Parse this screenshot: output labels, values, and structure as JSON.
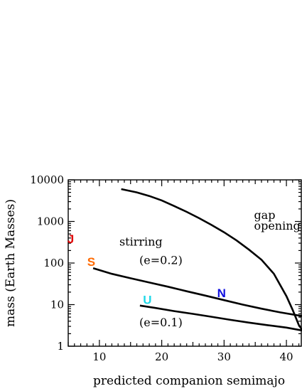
{
  "chart_data": {
    "type": "line",
    "xlabel": "predicted companion semimajo",
    "ylabel": "mass (Earth Masses)",
    "x_ticks": [
      10,
      20,
      30,
      40
    ],
    "y_ticks": [
      {
        "value": 1,
        "label": "1"
      },
      {
        "value": 10,
        "label": "10"
      },
      {
        "value": 100,
        "label": "100"
      },
      {
        "value": 1000,
        "label": "1000"
      },
      {
        "value": 10000,
        "label": "10000"
      }
    ],
    "xlim": [
      5,
      42.5
    ],
    "ylim": [
      1,
      10000
    ],
    "yscale": "log",
    "grid": false,
    "series": [
      {
        "name": "gap opening",
        "x": [
          13.5,
          16,
          18,
          20,
          22,
          24,
          26,
          28,
          30,
          32,
          34,
          36,
          38,
          40,
          41,
          42,
          42.5
        ],
        "y": [
          6000,
          5000,
          4100,
          3200,
          2350,
          1700,
          1200,
          820,
          550,
          350,
          210,
          120,
          55,
          16,
          7.5,
          3.2,
          2.5
        ]
      },
      {
        "name": "stirring (e=0.2)",
        "x": [
          9,
          12,
          15,
          18,
          21,
          24,
          27,
          30,
          33,
          36,
          39,
          42.5
        ],
        "y": [
          75,
          55,
          43,
          34,
          27,
          21,
          16.5,
          12.8,
          10,
          8,
          6.5,
          5.3
        ]
      },
      {
        "name": "stirring (e=0.1)",
        "x": [
          16.5,
          19,
          22,
          25,
          28,
          31,
          34,
          37,
          40,
          42.5
        ],
        "y": [
          9.5,
          8.3,
          7,
          6,
          5.1,
          4.3,
          3.7,
          3.2,
          2.8,
          2.4
        ]
      }
    ],
    "annotations": [
      {
        "text": "gap",
        "x": 34.8,
        "y": 1150
      },
      {
        "text": "opening",
        "x": 34.8,
        "y": 640
      },
      {
        "text": "stirring",
        "x": 13.2,
        "y": 260
      },
      {
        "text": "(e=0.2)",
        "x": 16.4,
        "y": 95
      },
      {
        "text": "(e=0.1)",
        "x": 16.4,
        "y": 3.0
      }
    ],
    "planets": [
      {
        "label": "J",
        "x": 5.4,
        "y": 300,
        "color": "#e00000"
      },
      {
        "label": "S",
        "x": 8.7,
        "y": 85,
        "color": "#ff6a00"
      },
      {
        "label": "U",
        "x": 17.7,
        "y": 10.5,
        "color": "#20d8e8"
      },
      {
        "label": "N",
        "x": 29.6,
        "y": 15,
        "color": "#1010e0"
      }
    ]
  }
}
